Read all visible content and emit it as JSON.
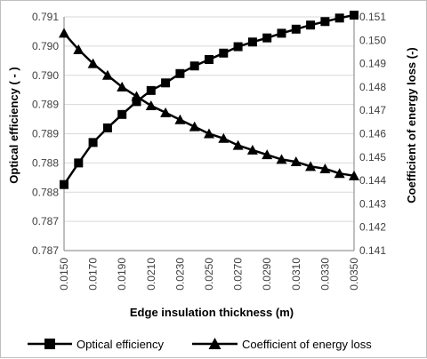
{
  "chart_data": {
    "type": "line",
    "x": [
      "0.0150",
      "0.0160",
      "0.0170",
      "0.0180",
      "0.0190",
      "0.0200",
      "0.0210",
      "0.0220",
      "0.0230",
      "0.0240",
      "0.0250",
      "0.0260",
      "0.0270",
      "0.0280",
      "0.0290",
      "0.0300",
      "0.0310",
      "0.0320",
      "0.0330",
      "0.0340",
      "0.0350"
    ],
    "x_tick_labels": [
      "0.0150",
      "0.0170",
      "0.0190",
      "0.0210",
      "0.0230",
      "0.0250",
      "0.0270",
      "0.0290",
      "0.0310",
      "0.0330",
      "0.0350"
    ],
    "xlabel": "Edge insulation thickness (m)",
    "y_left": {
      "label": "Optical efficiency ( - )",
      "ylim": [
        0.787,
        0.791
      ],
      "tick_labels": [
        "0.787",
        "0.787",
        "0.788",
        "0.788",
        "0.789",
        "0.789",
        "0.790",
        "0.790",
        "0.791"
      ]
    },
    "y_right": {
      "label": "Coefficient of energy loss (-)",
      "ylim": [
        0.141,
        0.151
      ],
      "tick_labels": [
        "0.141",
        "0.142",
        "0.143",
        "0.144",
        "0.145",
        "0.146",
        "0.147",
        "0.148",
        "0.149",
        "0.150",
        "0.151"
      ]
    },
    "series": [
      {
        "name": "Optical efficiency",
        "axis": "left",
        "marker": "square",
        "values": [
          0.78813,
          0.7885,
          0.78885,
          0.7891,
          0.78933,
          0.78955,
          0.78974,
          0.78987,
          0.79003,
          0.79016,
          0.79027,
          0.79038,
          0.79049,
          0.79057,
          0.79064,
          0.79072,
          0.79079,
          0.79086,
          0.79092,
          0.79098,
          0.79103
        ]
      },
      {
        "name": "Coefficient of energy loss",
        "axis": "right",
        "marker": "triangle",
        "values": [
          0.1503,
          0.1496,
          0.149,
          0.1485,
          0.148,
          0.1476,
          0.1472,
          0.1469,
          0.1466,
          0.1463,
          0.146,
          0.1458,
          0.1455,
          0.1453,
          0.1451,
          0.1449,
          0.1448,
          0.1446,
          0.1445,
          0.1443,
          0.1442
        ]
      }
    ],
    "grid": true,
    "legend_position": "bottom"
  }
}
